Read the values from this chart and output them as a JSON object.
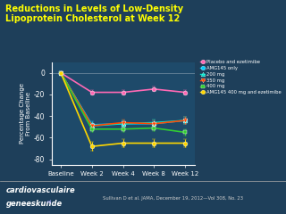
{
  "title": "Reductions in Levels of Low-Density\nLipoprotein Cholesterol at Week 12",
  "title_color": "#FFFF00",
  "bg_color": "#1e3f5a",
  "plot_bg_color": "#1e4a6a",
  "ylabel": "Percentage Change\nFrom Baseline",
  "ylabel_color": "#ffffff",
  "xtick_labels": [
    "Baseline",
    "Week 2",
    "Week 4",
    "Week 8",
    "Week 12"
  ],
  "x_positions": [
    0,
    1,
    2,
    3,
    4
  ],
  "ylim": [
    -85,
    10
  ],
  "yticks": [
    0,
    -20,
    -40,
    -60,
    -80
  ],
  "footer_left": "cardiovasculaire\ngeneeskunde",
  "footer_right": "Sullivan D et al. JAMA, December 19, 2012—Vol 308, No. 23",
  "series": [
    {
      "name": "Placebo and ezetimibe",
      "color": "#ff69b4",
      "marker": "o",
      "markersize": 3.5,
      "linewidth": 1.2,
      "y": [
        0,
        -18,
        -18,
        -15,
        -18
      ],
      "yerr": [
        0,
        2,
        2,
        2,
        2
      ]
    },
    {
      "name": "AMG145 only",
      "color": "#00cfff",
      "marker": "o",
      "markersize": 3.5,
      "linewidth": 1.2,
      "y": [
        0,
        -48,
        -47,
        -47,
        -44
      ],
      "yerr": [
        0,
        3,
        3,
        3,
        3
      ]
    },
    {
      "name": "200 mg",
      "color": "#00e5cc",
      "marker": "^",
      "markersize": 3.5,
      "linewidth": 1.2,
      "y": [
        0,
        -49,
        -47,
        -46,
        -44
      ],
      "yerr": [
        0,
        3,
        3,
        3,
        3
      ]
    },
    {
      "name": "350 mg",
      "color": "#ff4500",
      "marker": "v",
      "markersize": 3.5,
      "linewidth": 1.2,
      "y": [
        0,
        -49,
        -46,
        -47,
        -44
      ],
      "yerr": [
        0,
        3,
        3,
        3,
        3
      ]
    },
    {
      "name": "400 mg",
      "color": "#32cd32",
      "marker": "s",
      "markersize": 3.5,
      "linewidth": 1.2,
      "y": [
        0,
        -52,
        -52,
        -51,
        -55
      ],
      "yerr": [
        0,
        3,
        3,
        3,
        3
      ]
    },
    {
      "name": "AMG145 400 mg and ezetimibe",
      "color": "#ffd700",
      "marker": "o",
      "markersize": 3.5,
      "linewidth": 1.2,
      "y": [
        0,
        -68,
        -65,
        -65,
        -65
      ],
      "yerr": [
        0,
        4,
        4,
        4,
        4
      ]
    }
  ]
}
